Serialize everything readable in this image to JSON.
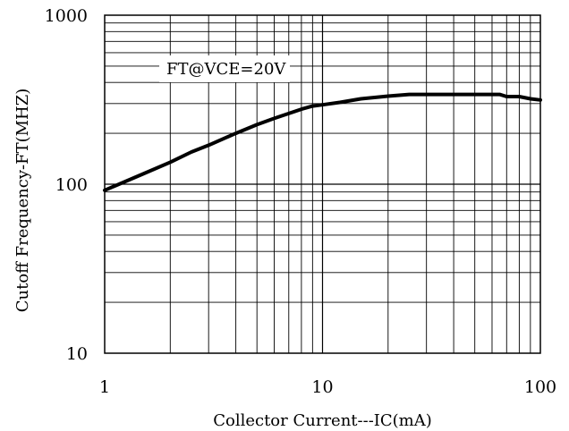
{
  "chart_data": {
    "type": "line",
    "title": "",
    "xlabel": "Collector Current---IC(mA)",
    "ylabel": "Cutoff Frequency-FT(MHZ)",
    "xscale": "log",
    "yscale": "log",
    "xlim": [
      1,
      100
    ],
    "ylim": [
      10,
      1000
    ],
    "x_ticks": [
      {
        "value": 1,
        "label": "1"
      },
      {
        "value": 10,
        "label": "10"
      },
      {
        "value": 100,
        "label": "100"
      }
    ],
    "y_ticks": [
      {
        "value": 10,
        "label": "10"
      },
      {
        "value": 100,
        "label": "100"
      },
      {
        "value": 1000,
        "label": "1000"
      }
    ],
    "grid": true,
    "annotation": "FT@VCE=20V",
    "colors": {
      "line": "#000000",
      "grid": "#000000",
      "background": "#ffffff"
    },
    "series": [
      {
        "x": [
          1,
          1.5,
          2,
          2.5,
          3,
          4,
          5,
          6,
          7,
          8,
          9,
          10,
          12,
          15,
          20,
          25,
          30,
          40,
          50,
          65,
          70,
          80,
          90,
          100
        ],
        "y": [
          92,
          115,
          135,
          155,
          170,
          200,
          225,
          245,
          262,
          278,
          290,
          295,
          305,
          320,
          332,
          340,
          340,
          340,
          340,
          340,
          330,
          330,
          320,
          315
        ]
      }
    ]
  }
}
